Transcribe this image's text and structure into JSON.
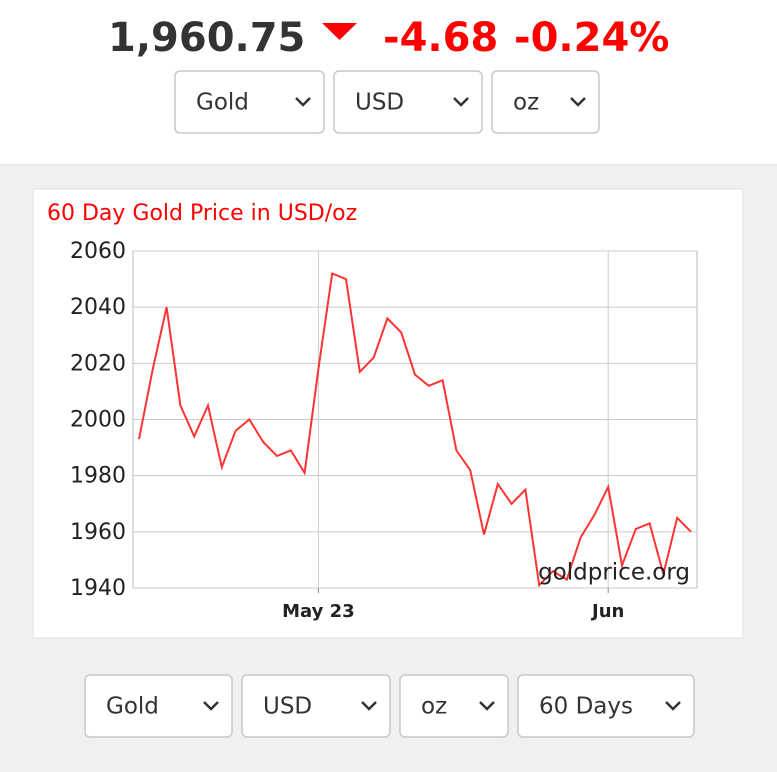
{
  "header": {
    "price": "1,960.75",
    "change": "-4.68",
    "change_percent": "-0.24%",
    "selects": [
      "Gold",
      "USD",
      "oz"
    ]
  },
  "chart_data": {
    "type": "line",
    "title": "60 Day Gold Price in USD/oz",
    "watermark": "goldprice.org",
    "categories": [
      null,
      null,
      null,
      null,
      null,
      null,
      null,
      null,
      null,
      null,
      null,
      null,
      null,
      "May 23",
      null,
      null,
      null,
      null,
      null,
      null,
      null,
      null,
      null,
      null,
      null,
      null,
      null,
      null,
      null,
      null,
      null,
      null,
      null,
      null,
      "Jun",
      null,
      null,
      null,
      null,
      null,
      null
    ],
    "series": [
      {
        "name": "Gold",
        "color": "#ff3333",
        "values": [
          1993,
          2018,
          2040,
          2005,
          1994,
          2005,
          1983,
          1996,
          2000,
          1992,
          1987,
          1989,
          1981,
          2018,
          2052,
          2050,
          2017,
          2022,
          2036,
          2031,
          2016,
          2012,
          2014,
          1989,
          1982,
          1959,
          1977,
          1970,
          1975,
          1941,
          1946,
          1943,
          1958,
          1966,
          1976,
          1948,
          1961,
          1963,
          1945,
          1965,
          1960
        ]
      }
    ],
    "ylim": [
      1940,
      2060
    ],
    "yticks": [
      1940,
      1960,
      1980,
      2000,
      2020,
      2040,
      2060
    ],
    "grid": true
  },
  "footer": {
    "selects": [
      "Gold",
      "USD",
      "oz",
      "60 Days"
    ]
  }
}
